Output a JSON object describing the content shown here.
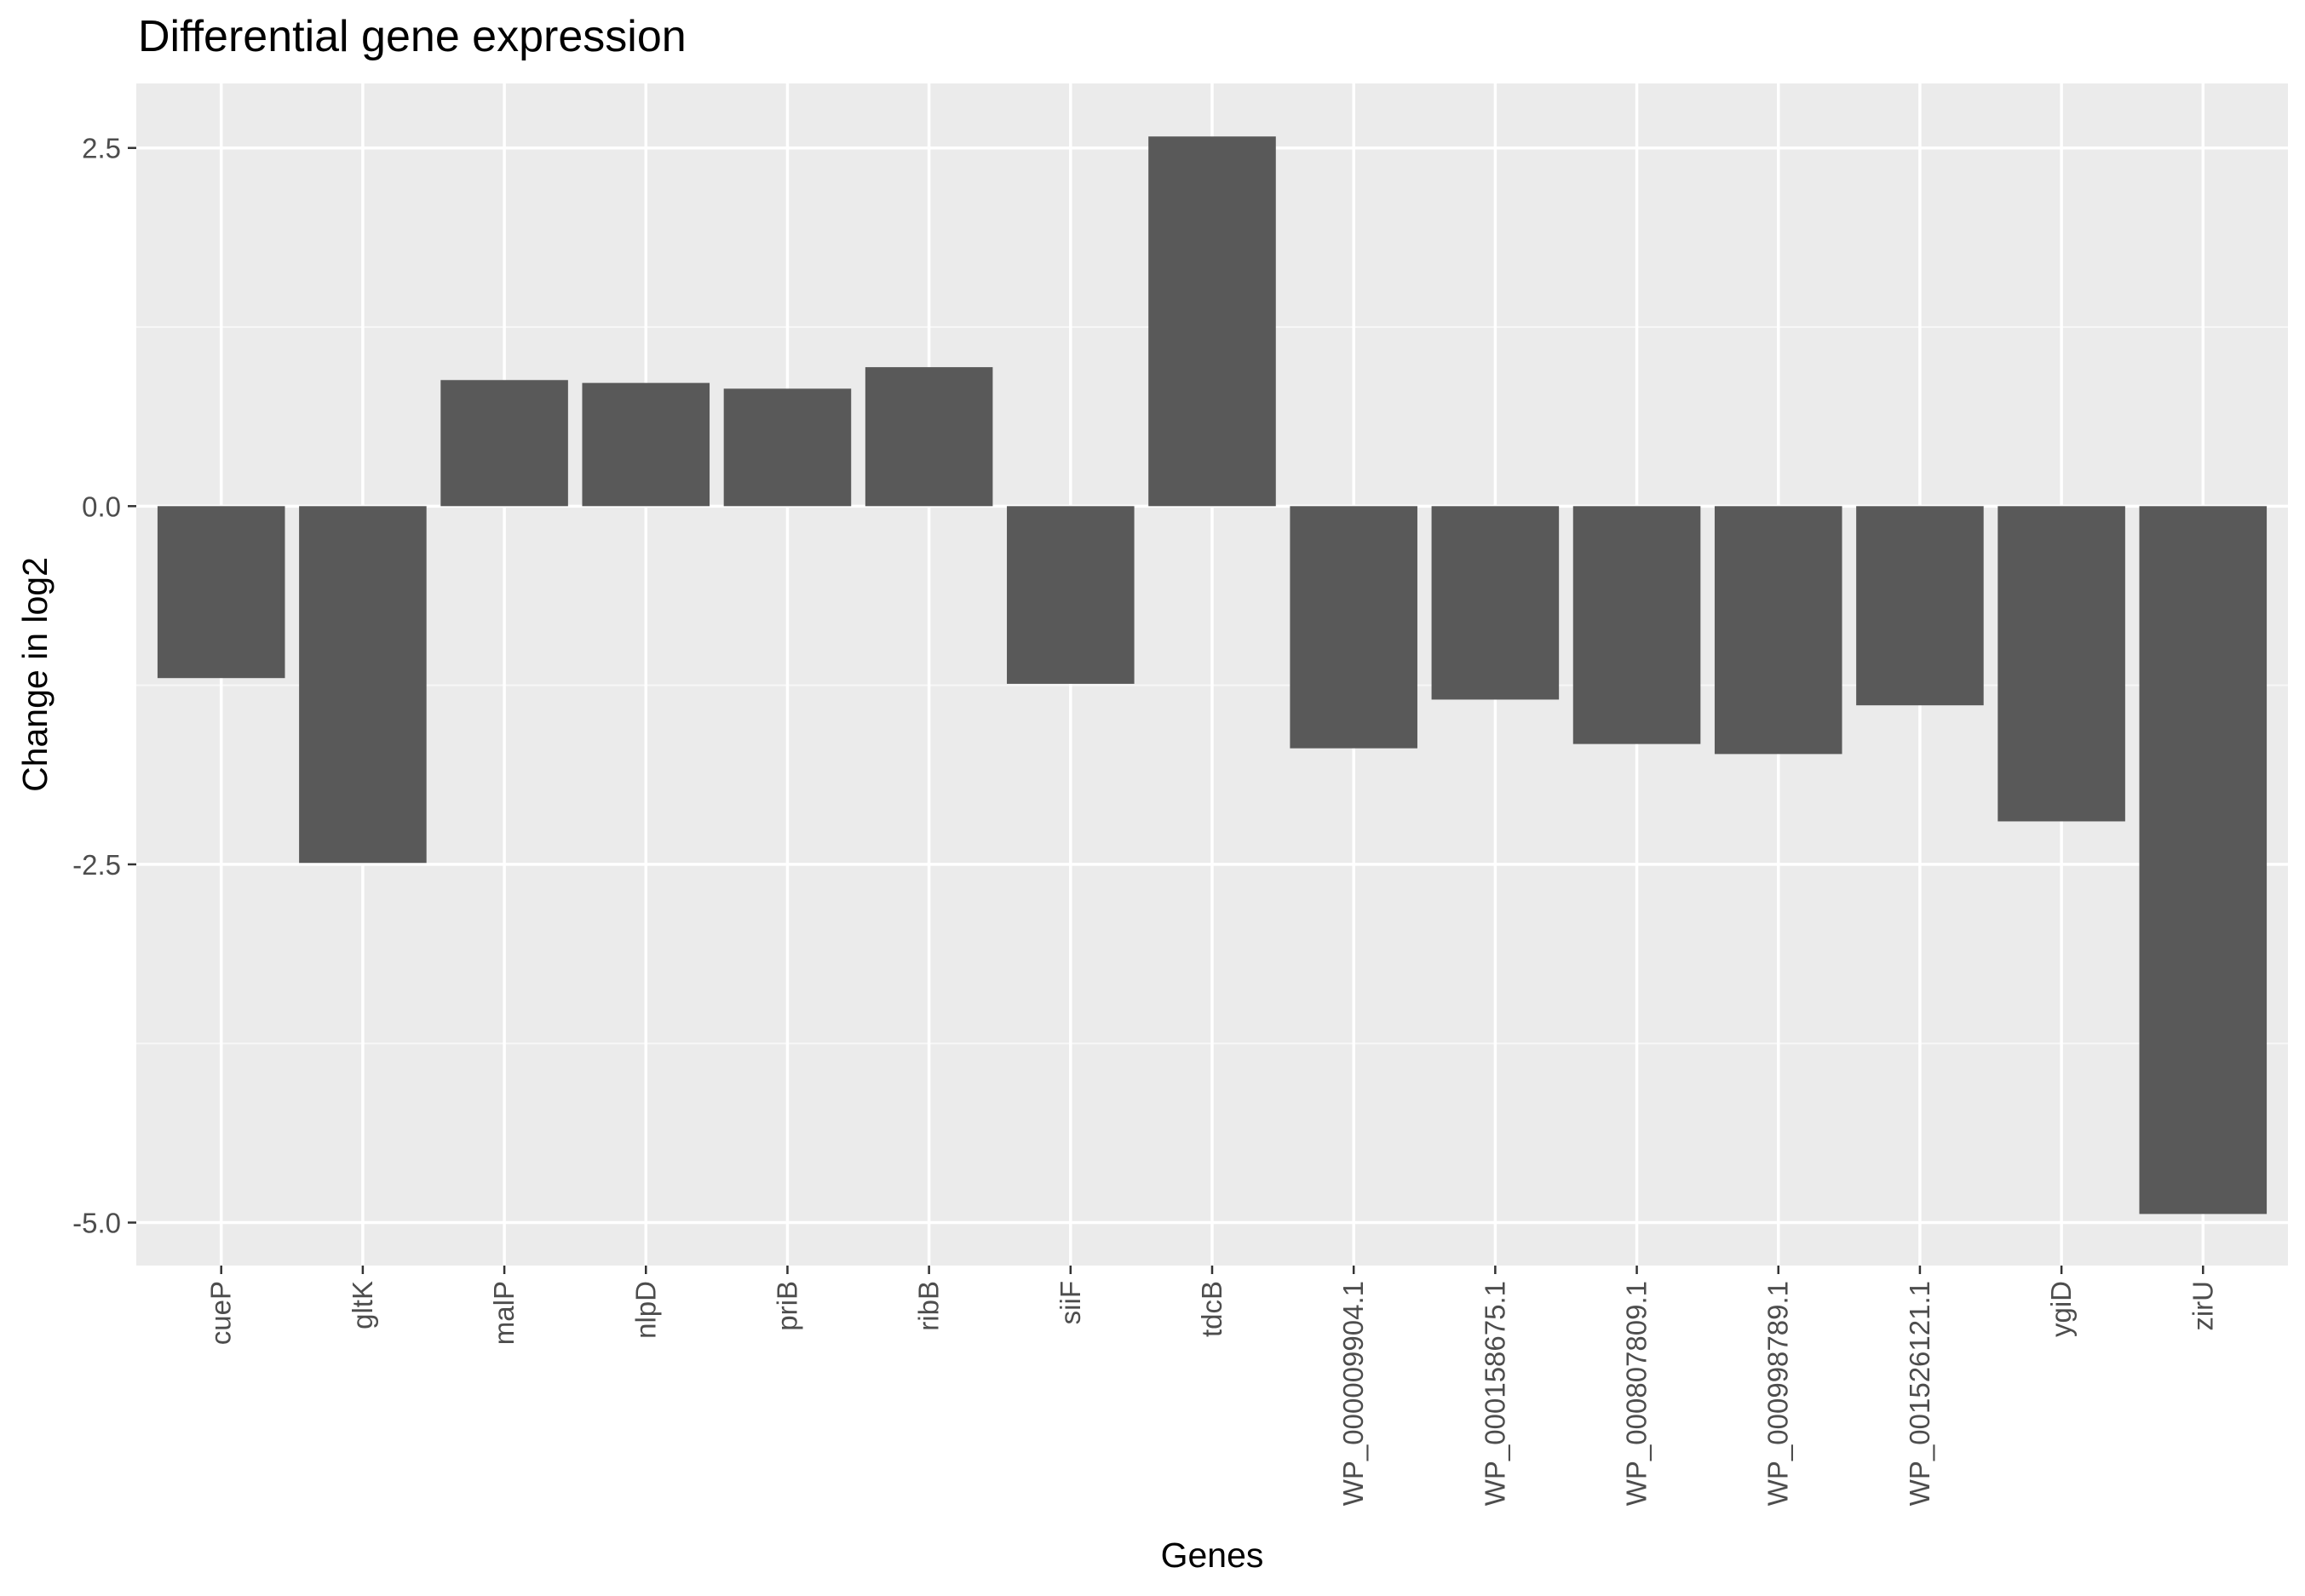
{
  "chart_data": {
    "type": "bar",
    "title": "Differential gene expression",
    "xlabel": "Genes",
    "ylabel": "Change in log2",
    "categories": [
      "cueP",
      "gltK",
      "malP",
      "nlpD",
      "priB",
      "ribB",
      "siiF",
      "tdcB",
      "WP_000009904.1",
      "WP_000158675.1",
      "WP_000807809.1",
      "WP_000998789.1",
      "WP_001526121.1",
      "ygiD",
      "zirU"
    ],
    "values": [
      -1.2,
      -2.49,
      0.88,
      0.86,
      0.82,
      0.97,
      -1.24,
      2.58,
      -1.69,
      -1.35,
      -1.66,
      -1.73,
      -1.39,
      -2.2,
      -4.94
    ],
    "ylim": [
      -5.3,
      2.95
    ],
    "yticks": [
      2.5,
      0.0,
      -2.5,
      -5.0
    ],
    "ytick_labels": [
      "2.5",
      "0.0",
      "-2.5",
      "-5.0"
    ],
    "grid": true,
    "colors": {
      "bar": "#595959",
      "panel_background": "#ebebeb",
      "grid_major": "#ffffff",
      "grid_minor": "#f7f7f7",
      "tick_text": "#4d4d4d"
    }
  }
}
